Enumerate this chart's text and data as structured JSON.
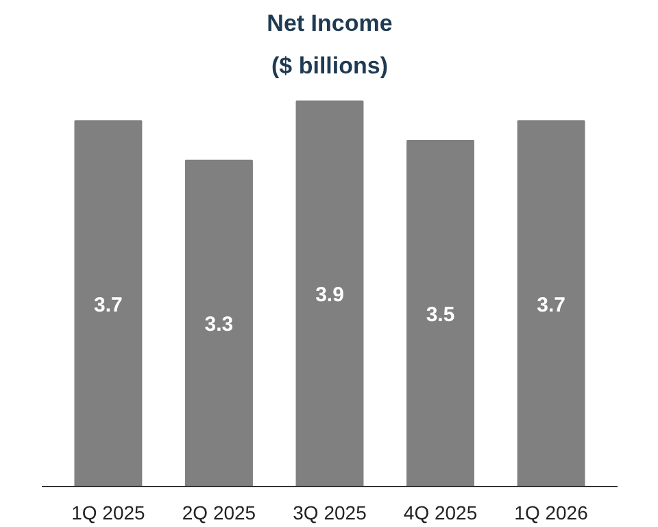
{
  "chart_data": {
    "type": "bar",
    "title": "Net Income",
    "subtitle": "($ billions)",
    "categories": [
      "1Q 2025",
      "2Q 2025",
      "3Q 2025",
      "4Q 2025",
      "1Q 2026"
    ],
    "values": [
      3.7,
      3.3,
      3.9,
      3.5,
      3.7
    ],
    "color": "#808080",
    "data_labels": true,
    "grid": false
  }
}
